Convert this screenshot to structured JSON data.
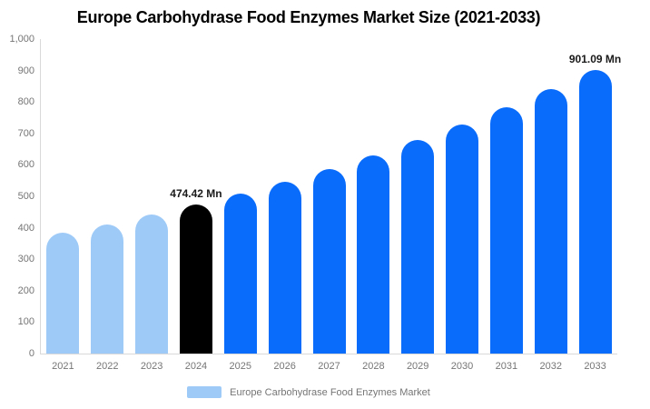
{
  "title": "Europe Carbohydrase Food Enzymes Market Size (2021-2033)",
  "legend": {
    "label": "Europe Carbohydrase Food Enzymes Market"
  },
  "colors": {
    "historical": "#9ECAF8",
    "base_year": "#000000",
    "forecast": "#0A6CFB",
    "axis_line": "#D9D9D9",
    "tick_text": "#757575",
    "annotation_text": "#1A1A1A",
    "legend_swatch": "#9ECAF8"
  },
  "chart_data": {
    "type": "bar",
    "title": "Europe Carbohydrase Food Enzymes Market Size (2021-2033)",
    "xlabel": "",
    "ylabel": "",
    "ylim": [
      0,
      1000
    ],
    "grid": false,
    "legend_position": "bottom",
    "categories": [
      "2021",
      "2022",
      "2023",
      "2024",
      "2025",
      "2026",
      "2027",
      "2028",
      "2029",
      "2030",
      "2031",
      "2032",
      "2033"
    ],
    "values": [
      383.0,
      411.3,
      441.7,
      474.42,
      509.5,
      547.2,
      587.7,
      631.2,
      677.9,
      728.1,
      781.9,
      839.8,
      901.09
    ],
    "bar_groups": [
      "historical",
      "historical",
      "historical",
      "base_year",
      "forecast",
      "forecast",
      "forecast",
      "forecast",
      "forecast",
      "forecast",
      "forecast",
      "forecast",
      "forecast"
    ],
    "y_ticks": [
      {
        "label": "1,000",
        "value": 1000
      },
      {
        "label": "900",
        "value": 900
      },
      {
        "label": "800",
        "value": 800
      },
      {
        "label": "700",
        "value": 700
      },
      {
        "label": "600",
        "value": 600
      },
      {
        "label": "500",
        "value": 500
      },
      {
        "label": "400",
        "value": 400
      },
      {
        "label": "300",
        "value": 300
      },
      {
        "label": "200",
        "value": 200
      },
      {
        "label": "100",
        "value": 100
      },
      {
        "label": "0",
        "value": 0
      }
    ],
    "annotations": [
      {
        "category": "2024",
        "text": "474.42 Mn"
      },
      {
        "category": "2033",
        "text": "901.09 Mn"
      }
    ],
    "series_name": "Europe Carbohydrase Food Enzymes Market"
  }
}
